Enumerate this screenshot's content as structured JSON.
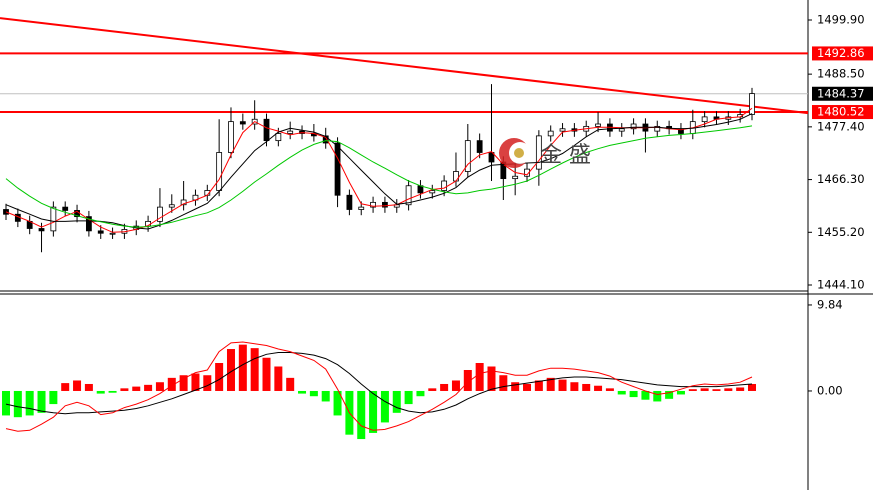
{
  "chart_data": {
    "type": "candlestick",
    "watermark": "金 盛",
    "ylim": [
      1443.05,
      1504.11
    ],
    "yticks": [
      {
        "value": 1499.9,
        "label": "1499.90"
      },
      {
        "value": 1488.5,
        "label": "1488.50"
      },
      {
        "value": 1477.4,
        "label": "1477.40"
      },
      {
        "value": 1466.3,
        "label": "1466.30"
      },
      {
        "value": 1455.2,
        "label": "1455.20"
      },
      {
        "value": 1444.1,
        "label": "1444.10"
      }
    ],
    "bull_color": "#ffffff",
    "bear_color": "#000000",
    "wick_color": "#000000",
    "open": [
      1460.0,
      1459.0,
      1457.5,
      1456.0,
      1455.5,
      1460.5,
      1459.8,
      1458.5,
      1455.5,
      1455.0,
      1455.0,
      1455.8,
      1456.5,
      1457.5,
      1460.5,
      1461.0,
      1462.0,
      1463.0,
      1464.0,
      1472.0,
      1478.5,
      1478.0,
      1479.0,
      1474.5,
      1476.0,
      1476.5,
      1476.0,
      1475.5,
      1474.0,
      1463.0,
      1460.0,
      1460.5,
      1461.5,
      1460.5,
      1461.0,
      1465.0,
      1463.5,
      1464.0,
      1466.0,
      1468.0,
      1474.5,
      1472.0,
      1470.0,
      1466.5,
      1467.0,
      1468.5,
      1475.5,
      1476.5,
      1477.0,
      1476.5,
      1477.5,
      1478.0,
      1476.5,
      1477.0,
      1478.0,
      1476.5,
      1477.5,
      1477.0,
      1476.0,
      1478.5,
      1479.5,
      1479.0,
      1479.5,
      1480.0
    ],
    "high": [
      1461.2,
      1460.2,
      1458.7,
      1457.2,
      1461.7,
      1461.7,
      1461.0,
      1459.7,
      1456.7,
      1456.2,
      1457.0,
      1457.7,
      1458.7,
      1464.5,
      1463.2,
      1466.0,
      1464.2,
      1465.2,
      1479.0,
      1481.5,
      1480.2,
      1483.0,
      1480.2,
      1477.2,
      1478.5,
      1477.7,
      1478.0,
      1477.2,
      1475.2,
      1464.2,
      1461.7,
      1462.7,
      1462.7,
      1462.2,
      1466.2,
      1466.2,
      1465.2,
      1467.2,
      1472.0,
      1478.0,
      1476.0,
      1486.4,
      1471.2,
      1470.0,
      1469.7,
      1476.7,
      1477.7,
      1478.2,
      1478.2,
      1478.7,
      1480.5,
      1479.2,
      1478.2,
      1479.2,
      1479.2,
      1478.7,
      1478.7,
      1478.2,
      1481.0,
      1480.7,
      1480.7,
      1480.7,
      1481.2,
      1485.6
    ],
    "low": [
      1457.8,
      1456.3,
      1454.8,
      1451.0,
      1454.3,
      1458.6,
      1457.3,
      1454.3,
      1453.8,
      1453.8,
      1453.8,
      1454.6,
      1455.3,
      1456.3,
      1459.3,
      1459.8,
      1460.8,
      1461.8,
      1462.8,
      1470.8,
      1476.8,
      1476.8,
      1473.3,
      1473.3,
      1474.8,
      1474.8,
      1474.3,
      1472.8,
      1460.5,
      1458.8,
      1458.8,
      1459.3,
      1459.3,
      1459.3,
      1459.8,
      1462.3,
      1462.3,
      1462.8,
      1464.8,
      1466.8,
      1470.8,
      1466.0,
      1462.0,
      1463.0,
      1465.8,
      1465.0,
      1474.3,
      1475.3,
      1475.3,
      1475.3,
      1476.3,
      1475.3,
      1475.3,
      1475.8,
      1472.0,
      1475.3,
      1475.8,
      1474.8,
      1474.8,
      1477.3,
      1477.8,
      1477.8,
      1478.3,
      1478.8
    ],
    "close": [
      1459.0,
      1457.5,
      1456.0,
      1455.5,
      1460.5,
      1459.8,
      1458.5,
      1455.5,
      1455.0,
      1455.0,
      1455.8,
      1456.5,
      1457.5,
      1460.5,
      1461.0,
      1462.0,
      1463.0,
      1464.0,
      1472.0,
      1478.5,
      1478.0,
      1479.0,
      1474.5,
      1476.0,
      1476.5,
      1476.0,
      1475.5,
      1474.0,
      1463.0,
      1460.0,
      1460.5,
      1461.5,
      1460.5,
      1461.0,
      1465.0,
      1463.5,
      1464.0,
      1466.0,
      1468.0,
      1474.5,
      1472.0,
      1470.0,
      1466.5,
      1467.0,
      1468.5,
      1475.5,
      1476.5,
      1477.0,
      1476.5,
      1477.5,
      1478.0,
      1476.5,
      1477.0,
      1478.0,
      1476.5,
      1477.5,
      1477.0,
      1476.0,
      1478.5,
      1479.5,
      1479.0,
      1479.5,
      1480.0,
      1484.4
    ],
    "series": [
      {
        "color": "#ff0000",
        "values": [
          1459.5,
          1458.5,
          1457.5,
          1456.3,
          1457.3,
          1458.6,
          1459.6,
          1457.9,
          1456.3,
          1455.2,
          1455.3,
          1455.8,
          1456.6,
          1458.2,
          1459.7,
          1461.2,
          1462.0,
          1463.0,
          1466.3,
          1471.5,
          1476.2,
          1478.5,
          1477.2,
          1476.5,
          1475.7,
          1476.2,
          1476.0,
          1475.2,
          1470.8,
          1465.7,
          1461.2,
          1460.7,
          1460.8,
          1461.0,
          1462.2,
          1463.2,
          1464.2,
          1464.5,
          1466.0,
          1469.5,
          1471.5,
          1472.2,
          1469.5,
          1467.8,
          1467.3,
          1470.3,
          1473.5,
          1476.3,
          1476.7,
          1477.0,
          1477.3,
          1477.3,
          1477.2,
          1477.2,
          1477.2,
          1477.3,
          1477.0,
          1476.8,
          1477.2,
          1478.0,
          1479.0,
          1479.3,
          1479.5,
          1481.3
        ]
      },
      {
        "color": "#000000",
        "values": [
          1461.0,
          1460.0,
          1459.0,
          1458.0,
          1457.5,
          1457.5,
          1457.6,
          1457.6,
          1457.5,
          1457.2,
          1456.6,
          1456.1,
          1455.9,
          1456.7,
          1457.7,
          1458.9,
          1460.1,
          1461.3,
          1463.8,
          1466.8,
          1469.6,
          1472.4,
          1474.3,
          1476.3,
          1477.1,
          1476.7,
          1476.3,
          1475.4,
          1473.3,
          1470.8,
          1468.3,
          1465.8,
          1463.3,
          1461.1,
          1461.4,
          1462.0,
          1462.6,
          1463.4,
          1464.6,
          1466.8,
          1468.3,
          1469.3,
          1469.5,
          1469.6,
          1469.8,
          1469.9,
          1470.7,
          1471.8,
          1473.5,
          1475.3,
          1476.8,
          1477.0,
          1477.1,
          1477.3,
          1477.3,
          1477.3,
          1477.1,
          1477.0,
          1477.1,
          1477.5,
          1477.9,
          1478.4,
          1479.0,
          1480.2
        ]
      },
      {
        "color": "#00c800",
        "values": [
          1466.5,
          1464.5,
          1462.8,
          1461.3,
          1460.2,
          1459.4,
          1458.7,
          1458.0,
          1457.4,
          1456.9,
          1456.5,
          1456.3,
          1456.4,
          1456.8,
          1457.3,
          1458.0,
          1458.7,
          1459.3,
          1460.4,
          1462.0,
          1463.8,
          1465.8,
          1467.5,
          1469.3,
          1471.0,
          1472.5,
          1473.7,
          1474.5,
          1474.3,
          1473.0,
          1471.5,
          1470.0,
          1468.7,
          1467.3,
          1466.0,
          1465.0,
          1464.3,
          1463.7,
          1463.3,
          1463.5,
          1464.0,
          1464.3,
          1464.8,
          1465.3,
          1466.0,
          1467.2,
          1468.5,
          1469.8,
          1471.0,
          1472.0,
          1472.8,
          1473.5,
          1474.0,
          1474.5,
          1475.0,
          1475.3,
          1475.6,
          1475.8,
          1476.0,
          1476.3,
          1476.6,
          1476.9,
          1477.2,
          1477.6
        ]
      }
    ],
    "price_lines": [
      {
        "value": 1492.86,
        "color": "#ff0000"
      },
      {
        "value": 1480.52,
        "color": "#ff0000"
      }
    ],
    "current_price": {
      "value": 1484.37,
      "color": "#000000",
      "line_color": "#c0c0c0"
    },
    "trendline": {
      "values": [
        1500.3,
        1480.3
      ],
      "color": "#ff0000"
    },
    "macd": {
      "ylim": [
        -11.33,
        10.98
      ],
      "yticks": [
        9.84,
        {
          "value": 0,
          "label": "0.00"
        }
      ],
      "up_color": "#ff0000",
      "down_color": "#00ff00",
      "histogram": [
        -2.8,
        -3.0,
        -2.8,
        -2.5,
        -1.5,
        0.9,
        1.2,
        0.8,
        -0.3,
        -0.2,
        0.3,
        0.5,
        0.7,
        1.0,
        1.5,
        1.8,
        2.0,
        1.8,
        3.2,
        4.8,
        5.3,
        4.9,
        3.8,
        2.8,
        1.5,
        -0.3,
        -0.6,
        -1.2,
        -2.8,
        -5.0,
        -5.5,
        -4.8,
        -3.6,
        -2.5,
        -1.5,
        -0.6,
        0.3,
        0.8,
        1.2,
        2.4,
        3.2,
        2.8,
        1.8,
        1.0,
        0.8,
        1.2,
        1.5,
        1.3,
        1.0,
        0.8,
        0.6,
        0.3,
        -0.4,
        -0.7,
        -1.0,
        -1.2,
        -0.9,
        -0.4,
        0.2,
        0.3,
        0.2,
        0.3,
        0.4,
        0.8
      ],
      "series": [
        {
          "color": "#000000",
          "values": [
            -1.5,
            -1.8,
            -2.0,
            -2.3,
            -2.5,
            -2.6,
            -2.5,
            -2.5,
            -2.4,
            -2.3,
            -2.2,
            -2.0,
            -1.7,
            -1.3,
            -0.9,
            -0.4,
            0.1,
            0.6,
            1.3,
            2.2,
            3.0,
            3.7,
            4.2,
            4.4,
            4.4,
            4.3,
            4.1,
            3.7,
            3.0,
            2.0,
            0.8,
            -0.3,
            -1.2,
            -1.9,
            -2.3,
            -2.5,
            -2.4,
            -2.1,
            -1.6,
            -0.9,
            -0.3,
            0.2,
            0.5,
            0.7,
            0.9,
            1.1,
            1.3,
            1.5,
            1.6,
            1.6,
            1.5,
            1.4,
            1.3,
            1.1,
            0.9,
            0.7,
            0.6,
            0.5,
            0.5,
            0.5,
            0.5,
            0.6,
            0.7,
            0.8
          ]
        },
        {
          "color": "#ff0000",
          "values": [
            -4.3,
            -4.6,
            -4.5,
            -3.8,
            -3.0,
            -1.7,
            -1.3,
            -1.7,
            -2.7,
            -2.5,
            -1.9,
            -1.5,
            -1.0,
            -0.3,
            0.6,
            1.4,
            2.1,
            2.4,
            4.5,
            5.5,
            5.6,
            5.4,
            5.2,
            4.8,
            4.5,
            4.0,
            3.5,
            2.5,
            0.2,
            -2.5,
            -4.0,
            -4.5,
            -4.4,
            -4.0,
            -3.5,
            -2.8,
            -2.1,
            -1.3,
            -0.4,
            1.0,
            2.0,
            2.3,
            2.1,
            1.8,
            1.8,
            2.3,
            2.6,
            2.6,
            2.5,
            2.3,
            2.1,
            1.7,
            1.0,
            0.5,
            0.0,
            -0.4,
            -0.2,
            0.2,
            0.6,
            0.8,
            0.7,
            0.8,
            1.0,
            1.6
          ]
        }
      ]
    }
  }
}
